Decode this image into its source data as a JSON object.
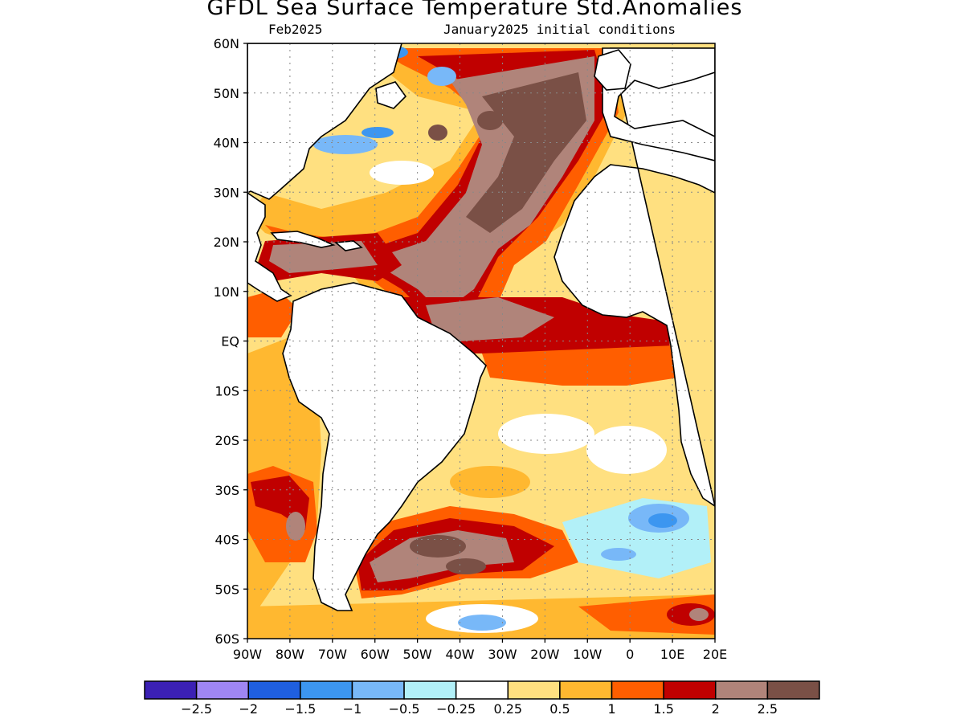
{
  "title": "GFDL Sea Surface Temperature Std.Anomalies",
  "subtitle_left": "Feb2025",
  "subtitle_right": "January2025 initial conditions",
  "lat_labels": [
    "60N",
    "50N",
    "40N",
    "30N",
    "20N",
    "10N",
    "EQ",
    "10S",
    "20S",
    "30S",
    "40S",
    "50S",
    "60S"
  ],
  "lon_labels": [
    "90W",
    "80W",
    "70W",
    "60W",
    "50W",
    "40W",
    "30W",
    "20W",
    "10W",
    "0",
    "10E",
    "20E"
  ],
  "colorbar": {
    "colors": [
      "#3b20b4",
      "#9f86f3",
      "#1f5fe0",
      "#3c96f0",
      "#78b8f8",
      "#b2f0f8",
      "#ffffff",
      "#ffe080",
      "#ffb830",
      "#ff5e00",
      "#c00000",
      "#b0847a",
      "#7a5046"
    ],
    "labels": [
      "−2.5",
      "−2",
      "−1.5",
      "−1",
      "−0.5",
      "−0.25",
      "0.25",
      "0.5",
      "1",
      "1.5",
      "2",
      "2.5"
    ]
  },
  "colors": {
    "land": "#ffffff",
    "coast": "#000000",
    "grid": "#888888"
  }
}
